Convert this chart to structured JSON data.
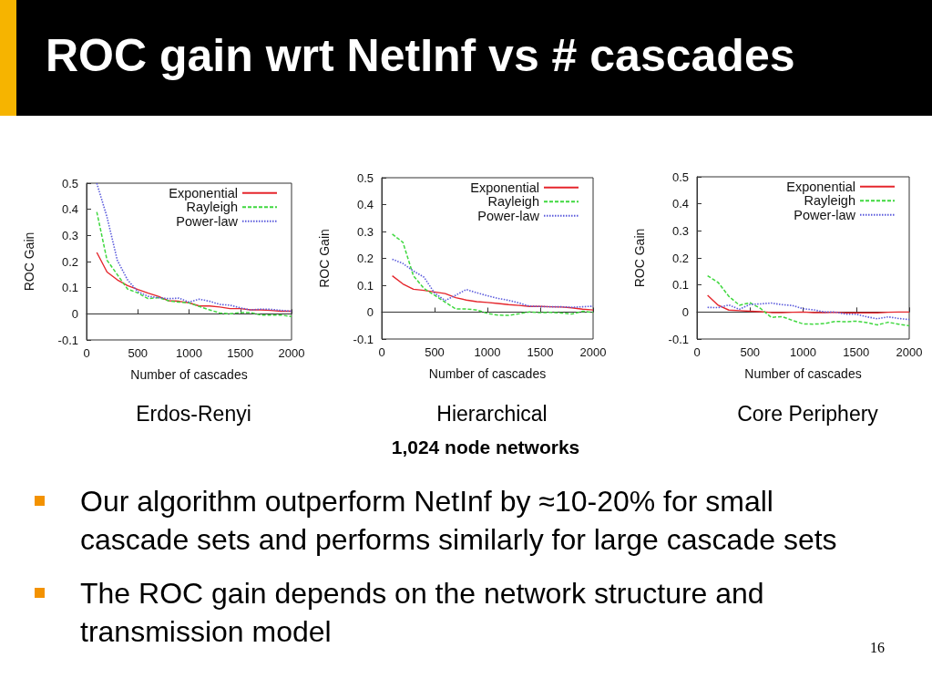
{
  "chart_data": [
    {
      "type": "other",
      "title": "ROC gain wrt NetInf vs # cascades"
    },
    {
      "type": "line",
      "title": "Erdos-Renyi",
      "xlabel": "Number of cascades",
      "ylabel": "ROC Gain",
      "x": [
        100,
        200,
        300,
        400,
        500,
        600,
        700,
        800,
        900,
        1000,
        1100,
        1200,
        1300,
        1400,
        1500,
        1600,
        1700,
        1800,
        1900,
        2000
      ],
      "series": [
        {
          "name": "Exponential",
          "color": "#e5262c",
          "line_style": "solid",
          "values": [
            0.235,
            0.16,
            0.13,
            0.108,
            0.093,
            0.079,
            0.067,
            0.05,
            0.048,
            0.042,
            0.03,
            0.03,
            0.026,
            0.02,
            0.02,
            0.015,
            0.015,
            0.013,
            0.01,
            0.01
          ]
        },
        {
          "name": "Rayleigh",
          "color": "#3fd83f",
          "line_style": "dashed",
          "values": [
            0.39,
            0.205,
            0.15,
            0.095,
            0.08,
            0.058,
            0.062,
            0.05,
            0.045,
            0.042,
            0.028,
            0.015,
            0.003,
            0.0,
            0.005,
            0.005,
            -0.005,
            -0.005,
            -0.005,
            -0.01
          ]
        },
        {
          "name": "Power-law",
          "color": "#5b5bdc",
          "line_style": "dotted",
          "values": [
            0.5,
            0.37,
            0.205,
            0.13,
            0.085,
            0.067,
            0.062,
            0.058,
            0.06,
            0.045,
            0.056,
            0.048,
            0.036,
            0.033,
            0.023,
            0.015,
            0.018,
            0.017,
            0.013,
            0.01
          ]
        }
      ],
      "xlim": [
        0,
        2000
      ],
      "xticks": [
        0,
        500,
        1000,
        1500,
        2000
      ],
      "ylim": [
        -0.1,
        0.5
      ],
      "yticks": [
        -0.1,
        0,
        0.1,
        0.2,
        0.3,
        0.4,
        0.5
      ],
      "marker": "none",
      "legend": "top right"
    },
    {
      "type": "line",
      "title": "Hierarchical",
      "xlabel": "Number of cascades",
      "ylabel": "ROC Gain",
      "x": [
        100,
        200,
        300,
        400,
        500,
        600,
        700,
        800,
        900,
        1000,
        1100,
        1200,
        1300,
        1400,
        1500,
        1600,
        1700,
        1800,
        1900,
        2000
      ],
      "series": [
        {
          "name": "Exponential",
          "color": "#e5262c",
          "line_style": "solid",
          "values": [
            0.135,
            0.105,
            0.085,
            0.081,
            0.075,
            0.069,
            0.054,
            0.045,
            0.039,
            0.036,
            0.032,
            0.028,
            0.025,
            0.021,
            0.021,
            0.02,
            0.019,
            0.016,
            0.011,
            0.008
          ]
        },
        {
          "name": "Rayleigh",
          "color": "#3fd83f",
          "line_style": "dashed",
          "values": [
            0.29,
            0.26,
            0.135,
            0.088,
            0.063,
            0.037,
            0.012,
            0.012,
            0.008,
            -0.005,
            -0.011,
            -0.012,
            -0.006,
            0.001,
            -0.002,
            -0.001,
            -0.003,
            -0.007,
            0.003,
            -0.001
          ]
        },
        {
          "name": "Power-law",
          "color": "#5b5bdc",
          "line_style": "dotted",
          "values": [
            0.197,
            0.181,
            0.153,
            0.13,
            0.071,
            0.043,
            0.063,
            0.084,
            0.072,
            0.061,
            0.051,
            0.044,
            0.034,
            0.022,
            0.021,
            0.02,
            0.02,
            0.018,
            0.02,
            0.022
          ]
        }
      ],
      "xlim": [
        0,
        2000
      ],
      "xticks": [
        0,
        500,
        1000,
        1500,
        2000
      ],
      "ylim": [
        -0.1,
        0.5
      ],
      "yticks": [
        -0.1,
        0,
        0.1,
        0.2,
        0.3,
        0.4,
        0.5
      ],
      "marker": "none",
      "legend": "top right"
    },
    {
      "type": "line",
      "title": "Core Periphery",
      "xlabel": "Number of cascades",
      "ylabel": "ROC Gain",
      "x": [
        100,
        200,
        300,
        400,
        500,
        600,
        700,
        800,
        900,
        1000,
        1100,
        1200,
        1300,
        1400,
        1500,
        1600,
        1700,
        1800,
        1900,
        2000
      ],
      "series": [
        {
          "name": "Exponential",
          "color": "#e5262c",
          "line_style": "solid",
          "values": [
            0.062,
            0.025,
            0.007,
            0.005,
            0.003,
            0.001,
            -0.002,
            -0.002,
            -0.001,
            0.0,
            -0.002,
            -0.002,
            -0.001,
            -0.003,
            -0.003,
            -0.003,
            -0.003,
            -0.001,
            0.0,
            0.0
          ]
        },
        {
          "name": "Rayleigh",
          "color": "#3fd83f",
          "line_style": "dashed",
          "values": [
            0.134,
            0.109,
            0.058,
            0.025,
            0.034,
            0.013,
            -0.02,
            -0.017,
            -0.031,
            -0.044,
            -0.045,
            -0.043,
            -0.035,
            -0.036,
            -0.034,
            -0.039,
            -0.048,
            -0.038,
            -0.045,
            -0.051
          ]
        },
        {
          "name": "Power-law",
          "color": "#5b5bdc",
          "line_style": "dotted",
          "values": [
            0.017,
            0.016,
            0.026,
            0.01,
            0.028,
            0.03,
            0.033,
            0.027,
            0.024,
            0.012,
            0.008,
            0.0,
            0.0,
            -0.008,
            -0.008,
            -0.018,
            -0.025,
            -0.018,
            -0.024,
            -0.028
          ]
        }
      ],
      "xlim": [
        0,
        2000
      ],
      "xticks": [
        0,
        500,
        1000,
        1500,
        2000
      ],
      "ylim": [
        -0.1,
        0.5
      ],
      "yticks": [
        -0.1,
        0,
        0.1,
        0.2,
        0.3,
        0.4,
        0.5
      ],
      "marker": "none",
      "legend": "top right"
    },
    {
      "type": "other",
      "annotations": [
        "1,024 node networks",
        "Our algorithm outperform NetInf by ≈10-20% for small cascade sets and performs similarly for large cascade sets",
        "The ROC gain depends on the network structure and transmission model",
        "16"
      ]
    }
  ]
}
